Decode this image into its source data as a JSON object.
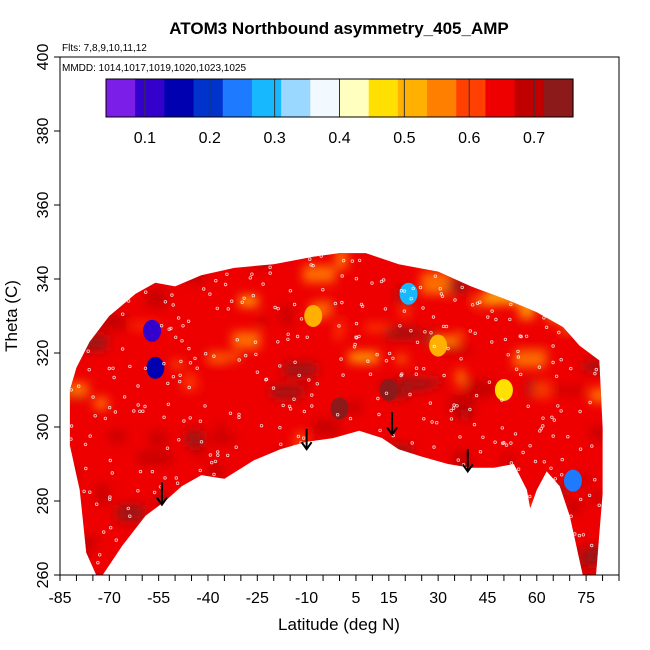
{
  "chart_data": {
    "type": "heatmap",
    "title": "ATOM3 Northbound asymmetry_405_AMP",
    "flights_label": "Flts: 7,8,9,10,11,12",
    "dates_label": "MMDD: 1014,1017,1019,1020,1023,1025",
    "xlabel": "Latitude (deg N)",
    "ylabel": "Theta (C)",
    "xlim": [
      -85,
      85
    ],
    "ylim": [
      260,
      400
    ],
    "x_ticks": [
      "-85",
      "-70",
      "-55",
      "-40",
      "-25",
      "-10",
      "5",
      "15",
      "30",
      "45",
      "60",
      "75"
    ],
    "x_tick_values": [
      -85,
      -70,
      -55,
      -40,
      -25,
      -10,
      5,
      15,
      30,
      45,
      60,
      75
    ],
    "y_ticks": [
      "260",
      "280",
      "300",
      "320",
      "340",
      "360",
      "380",
      "400"
    ],
    "y_tick_values": [
      260,
      280,
      300,
      320,
      340,
      360,
      380,
      400
    ],
    "colorbar": {
      "range": [
        0.04,
        0.76
      ],
      "ticks": [
        "0.1",
        "0.2",
        "0.3",
        "0.4",
        "0.5",
        "0.6",
        "0.7"
      ],
      "tick_values": [
        0.1,
        0.2,
        0.3,
        0.4,
        0.5,
        0.6,
        0.7
      ],
      "colors": [
        "#7b1fe8",
        "#3300cc",
        "#0000b0",
        "#0033cc",
        "#1e7bff",
        "#18b8ff",
        "#9ad8ff",
        "#f2faff",
        "#ffffc0",
        "#ffe000",
        "#ffb000",
        "#ff8000",
        "#ff4000",
        "#ee0000",
        "#c00000",
        "#8c1a1a"
      ]
    },
    "boundary": {
      "bottom": [
        [
          -72,
          260
        ],
        [
          -66,
          268
        ],
        [
          -59,
          276
        ],
        [
          -53,
          280
        ],
        [
          -48,
          284
        ],
        [
          -42,
          287
        ],
        [
          -35,
          286
        ],
        [
          -26,
          291
        ],
        [
          -18,
          294
        ],
        [
          -10,
          296
        ],
        [
          -2,
          297
        ],
        [
          6,
          299
        ],
        [
          13,
          297
        ],
        [
          18,
          294
        ],
        [
          25,
          292
        ],
        [
          33,
          290
        ],
        [
          40,
          289
        ],
        [
          47,
          289
        ],
        [
          53,
          290
        ],
        [
          57,
          283
        ],
        [
          58,
          278
        ],
        [
          60,
          283
        ],
        [
          63,
          288
        ],
        [
          67,
          284
        ],
        [
          70,
          276
        ],
        [
          74,
          260
        ]
      ],
      "top": [
        [
          78,
          260
        ],
        [
          80,
          282
        ],
        [
          80,
          300
        ],
        [
          79,
          318
        ],
        [
          73,
          322
        ],
        [
          68,
          327
        ],
        [
          60,
          331
        ],
        [
          52,
          334
        ],
        [
          40,
          338
        ],
        [
          30,
          342
        ],
        [
          18,
          344
        ],
        [
          8,
          347
        ],
        [
          0,
          347
        ],
        [
          -8,
          346
        ],
        [
          -20,
          344
        ],
        [
          -32,
          343
        ],
        [
          -42,
          341
        ],
        [
          -50,
          338
        ],
        [
          -56,
          339
        ],
        [
          -62,
          336
        ],
        [
          -70,
          330
        ],
        [
          -76,
          323
        ],
        [
          -80,
          316
        ],
        [
          -82,
          310
        ],
        [
          -82,
          295
        ],
        [
          -79,
          283
        ],
        [
          -77,
          266
        ],
        [
          -74,
          260
        ]
      ]
    },
    "arrows": [
      {
        "lat": -54,
        "theta_from": 285,
        "theta_to": 279
      },
      {
        "lat": -10,
        "theta_from": 299.5,
        "theta_to": 294
      },
      {
        "lat": 16,
        "theta_from": 304,
        "theta_to": 298
      },
      {
        "lat": 39,
        "theta_from": 294,
        "theta_to": 288
      }
    ],
    "features": [
      {
        "lat": -57,
        "theta": 326,
        "value": 0.1
      },
      {
        "lat": -56,
        "theta": 316,
        "value": 0.15
      },
      {
        "lat": 71,
        "theta": 285.5,
        "value": 0.25
      },
      {
        "lat": 21,
        "theta": 336,
        "value": 0.3
      },
      {
        "lat": -8,
        "theta": 330,
        "value": 0.5
      },
      {
        "lat": 30,
        "theta": 322,
        "value": 0.5
      },
      {
        "lat": 50,
        "theta": 310,
        "value": 0.45
      },
      {
        "lat": 0,
        "theta": 305,
        "value": 0.72
      },
      {
        "lat": 15,
        "theta": 310,
        "value": 0.72
      }
    ]
  }
}
